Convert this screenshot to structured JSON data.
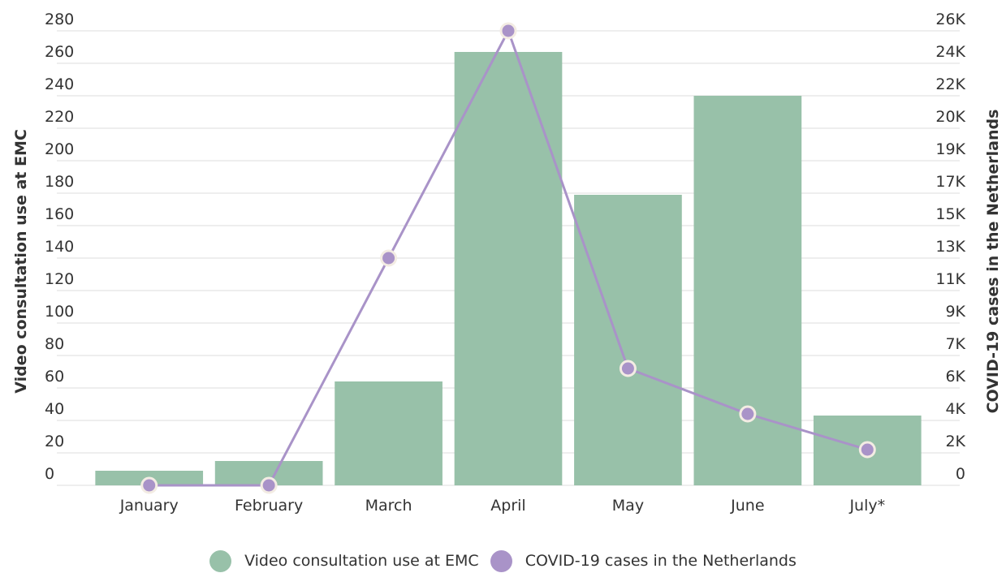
{
  "chart_data": {
    "type": "bar",
    "categories": [
      "January",
      "February",
      "March",
      "April",
      "May",
      "June",
      "July*"
    ],
    "series": [
      {
        "name": "Video consultation use at EMC",
        "type": "bar",
        "axis": "left",
        "color": "#98c1a9",
        "values": [
          9,
          15,
          64,
          267,
          179,
          240,
          43
        ]
      },
      {
        "name": "COVID-19 cases in the Netherlands",
        "type": "line",
        "axis": "right",
        "color": "#a993c8",
        "values": [
          0,
          0,
          14000,
          28000,
          7200,
          4400,
          2200
        ]
      }
    ],
    "ylabel": "Video consultation use at EMC",
    "y2label": "COVID-19 cases in the Netherlands",
    "ylim": [
      0,
      280
    ],
    "y_ticks": [
      "0",
      "20",
      "40",
      "60",
      "80",
      "100",
      "120",
      "140",
      "160",
      "180",
      "200",
      "220",
      "240",
      "260",
      "280"
    ],
    "y2_ticks": [
      "0",
      "2K",
      "4K",
      "6K",
      "7K",
      "9K",
      "11K",
      "13K",
      "15K",
      "17K",
      "19K",
      "20K",
      "22K",
      "24K",
      "26K"
    ],
    "grid": true,
    "legend_position": "bottom"
  }
}
